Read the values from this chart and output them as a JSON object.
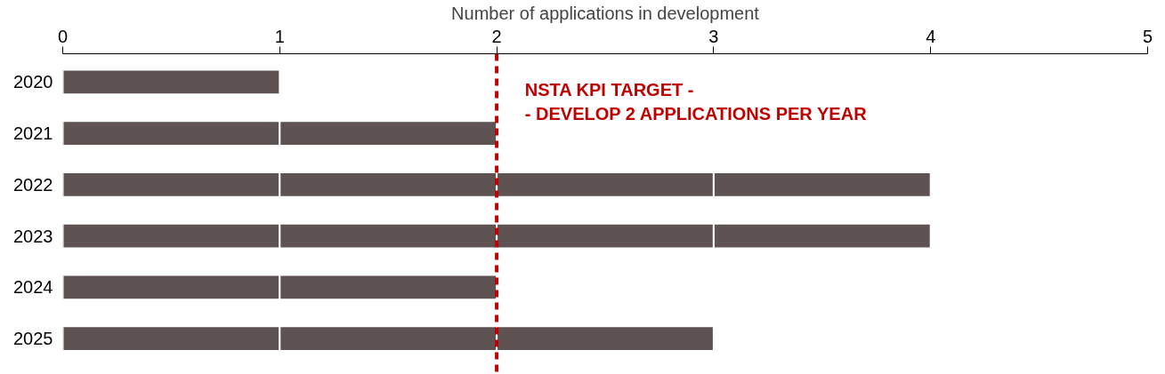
{
  "chart_data": {
    "type": "bar",
    "orientation": "horizontal",
    "stacked": true,
    "xlabel": "Number of applications in development",
    "categories": [
      "2020",
      "2021",
      "2022",
      "2023",
      "2024",
      "2025"
    ],
    "series": [
      {
        "color": "#5e5352",
        "values": [
          1,
          1,
          1,
          1,
          1,
          1
        ]
      },
      {
        "color": "#5e5352",
        "values": [
          null,
          1,
          1,
          1,
          1,
          1
        ]
      },
      {
        "color": "#5e5352",
        "values": [
          null,
          null,
          1,
          1,
          null,
          1
        ]
      },
      {
        "color": "#5e5352",
        "values": [
          null,
          null,
          1,
          1,
          null,
          null
        ]
      }
    ],
    "xlim": [
      0,
      5
    ],
    "xticks": [
      0,
      1,
      2,
      3,
      4,
      5
    ],
    "grid": false,
    "ref_lines": [
      {
        "axis": "x",
        "value": 2,
        "label": "NSTA KPI TARGET -\n- DEVELOP 2 APPLICATIONS PER YEAR",
        "color": "#c00000",
        "line_style": "dashed"
      }
    ]
  }
}
